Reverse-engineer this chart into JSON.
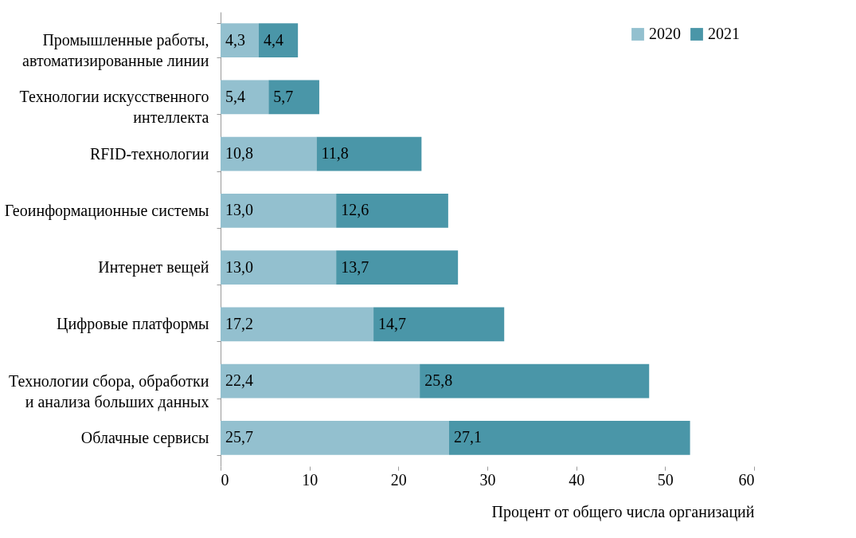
{
  "chart_data": {
    "type": "bar",
    "orientation": "horizontal",
    "stacked": true,
    "categories": [
      "Промышленные работы,\nавтоматизированные линии",
      "Технологии искусственного\nинтеллекта",
      "RFID-технологии",
      "Геоинформационные системы",
      "Интернет вещей",
      "Цифровые платформы",
      "Технологии сбора, обработки\nи анализа больших данных",
      "Облачные сервисы"
    ],
    "series": [
      {
        "name": "2020",
        "color": "#93c0cf",
        "values": [
          4.3,
          5.4,
          10.8,
          13.0,
          13.0,
          17.2,
          22.4,
          25.7
        ],
        "value_labels": [
          "4,3",
          "5,4",
          "10,8",
          "13,0",
          "13,0",
          "17,2",
          "22,4",
          "25,7"
        ]
      },
      {
        "name": "2021",
        "color": "#4a96a8",
        "values": [
          4.4,
          5.7,
          11.8,
          12.6,
          13.7,
          14.7,
          25.8,
          27.1
        ],
        "value_labels": [
          "4,4",
          "5,7",
          "11,8",
          "12,6",
          "13,7",
          "14,7",
          "25,8",
          "27,1"
        ]
      }
    ],
    "xlim": [
      0,
      60
    ],
    "xticks": [
      0,
      10,
      20,
      30,
      40,
      50,
      60
    ],
    "xlabel": "Процент от общего числа организаций",
    "legend": "top right",
    "grid": false
  }
}
